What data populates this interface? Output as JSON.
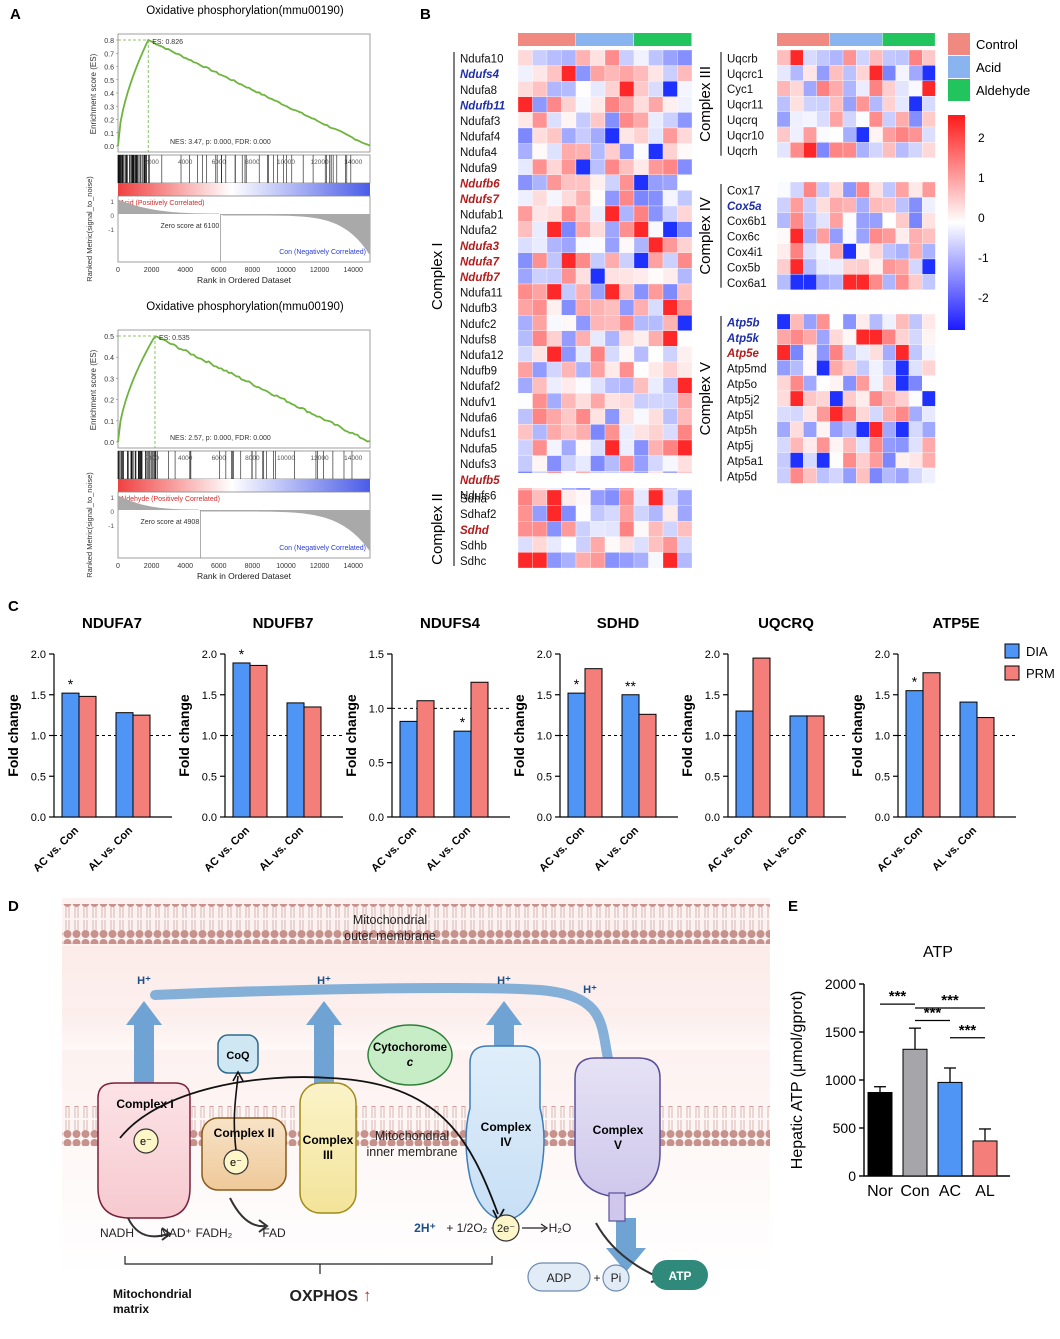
{
  "panel_labels": [
    "A",
    "B",
    "C",
    "D",
    "E"
  ],
  "panelA": {
    "plots": [
      {
        "title": "Oxidative phosphorylation(mmu00190)",
        "es_label": "ES: 0.826",
        "stats": "NES: 3.47, p: 0.000, FDR: 0.000",
        "pos_label": "Acid (Positively Correlated)",
        "neg_label": "Con (Negatively Correlated)",
        "zero_label": "Zero score at 6100",
        "yaxis_es": "Enrichment score (ES)",
        "yaxis_rank": "Ranked Metric(signal_to_noise)",
        "xlabel": "Rank in Ordered Dataset",
        "es_ticks": [
          "0.8",
          "0.7",
          "0.6",
          "0.5",
          "0.4",
          "0.3",
          "0.2",
          "0.1",
          "0.0"
        ],
        "bar_ticks": [
          "2000",
          "4000",
          "6000",
          "8000",
          "10000",
          "12000",
          "14000"
        ],
        "x_ticks": [
          "0",
          "2000",
          "4000",
          "6000",
          "8000",
          "10000",
          "12000",
          "14000"
        ],
        "rank_ticks": [
          "1",
          "0",
          "-1"
        ]
      },
      {
        "title": "Oxidative phosphorylation(mmu00190)",
        "es_label": "ES: 0.535",
        "stats": "NES: 2.57, p: 0.000, FDR: 0.000",
        "pos_label": "Aldehyde (Positively Correlated)",
        "neg_label": "Con (Negatively Correlated)",
        "zero_label": "Zero score at 4908",
        "yaxis_es": "Enrichment score (ES)",
        "yaxis_rank": "Ranked Metric(signal_to_noise)",
        "xlabel": "Rank in Ordered Dataset",
        "es_ticks": [
          "0.5",
          "0.4",
          "0.3",
          "0.2",
          "0.1",
          "0.0"
        ],
        "bar_ticks": [
          "2000",
          "4000",
          "6000",
          "8000",
          "10000",
          "12000",
          "14000"
        ],
        "x_ticks": [
          "0",
          "2000",
          "4000",
          "6000",
          "8000",
          "10000",
          "12000",
          "14000"
        ],
        "rank_ticks": [
          "1",
          "0",
          "-1"
        ]
      }
    ]
  },
  "panelB": {
    "legend": [
      {
        "label": "Control",
        "color": "#F08A80"
      },
      {
        "label": "Acid",
        "color": "#8AB4F0"
      },
      {
        "label": "Aldehyde",
        "color": "#22C45E"
      }
    ],
    "colorbar_ticks": [
      "2",
      "1",
      "0",
      "-1",
      "-2"
    ],
    "complexes": [
      {
        "name": "Complex I",
        "genes": [
          {
            "g": "Ndufa10",
            "c": "n"
          },
          {
            "g": "Ndufs4",
            "c": "b"
          },
          {
            "g": "Ndufa8",
            "c": "n"
          },
          {
            "g": "Ndufb11",
            "c": "b"
          },
          {
            "g": "Ndufaf3",
            "c": "n"
          },
          {
            "g": "Ndufaf4",
            "c": "n"
          },
          {
            "g": "Ndufa4",
            "c": "n"
          },
          {
            "g": "Ndufa9",
            "c": "n"
          },
          {
            "g": "Ndufb6",
            "c": "r"
          },
          {
            "g": "Ndufs7",
            "c": "r"
          },
          {
            "g": "Ndufab1",
            "c": "n"
          },
          {
            "g": "Ndufa2",
            "c": "n"
          },
          {
            "g": "Ndufa3",
            "c": "r"
          },
          {
            "g": "Ndufa7",
            "c": "r"
          },
          {
            "g": "Ndufb7",
            "c": "r"
          },
          {
            "g": "Ndufa11",
            "c": "n"
          },
          {
            "g": "Ndufb3",
            "c": "n"
          },
          {
            "g": "Ndufc2",
            "c": "n"
          },
          {
            "g": "Ndufs8",
            "c": "n"
          },
          {
            "g": "Ndufa12",
            "c": "n"
          },
          {
            "g": "Ndufb9",
            "c": "n"
          },
          {
            "g": "Ndufaf2",
            "c": "n"
          },
          {
            "g": "Ndufv1",
            "c": "n"
          },
          {
            "g": "Ndufa6",
            "c": "n"
          },
          {
            "g": "Ndufs1",
            "c": "n"
          },
          {
            "g": "Ndufa5",
            "c": "n"
          },
          {
            "g": "Ndufs3",
            "c": "n"
          },
          {
            "g": "Ndufb5",
            "c": "r"
          },
          {
            "g": "Ndufs6",
            "c": "n"
          }
        ]
      },
      {
        "name": "Complex II",
        "genes": [
          {
            "g": "Sdha",
            "c": "n"
          },
          {
            "g": "Sdhaf2",
            "c": "n"
          },
          {
            "g": "Sdhd",
            "c": "r"
          },
          {
            "g": "Sdhb",
            "c": "n"
          },
          {
            "g": "Sdhc",
            "c": "n"
          }
        ]
      },
      {
        "name": "Complex III",
        "genes": [
          {
            "g": "Uqcrb",
            "c": "n"
          },
          {
            "g": "Uqcrc1",
            "c": "n"
          },
          {
            "g": "Cyc1",
            "c": "n"
          },
          {
            "g": "Uqcr11",
            "c": "n"
          },
          {
            "g": "Uqcrq",
            "c": "n"
          },
          {
            "g": "Uqcr10",
            "c": "n"
          },
          {
            "g": "Uqcrh",
            "c": "n"
          }
        ]
      },
      {
        "name": "Complex IV",
        "genes": [
          {
            "g": "Cox17",
            "c": "n"
          },
          {
            "g": "Cox5a",
            "c": "b"
          },
          {
            "g": "Cox6b1",
            "c": "n"
          },
          {
            "g": "Cox6c",
            "c": "n"
          },
          {
            "g": "Cox4i1",
            "c": "n"
          },
          {
            "g": "Cox5b",
            "c": "n"
          },
          {
            "g": "Cox6a1",
            "c": "n"
          }
        ]
      },
      {
        "name": "Complex V",
        "genes": [
          {
            "g": "Atp5b",
            "c": "b"
          },
          {
            "g": "Atp5k",
            "c": "b"
          },
          {
            "g": "Atp5e",
            "c": "r"
          },
          {
            "g": "Atp5md",
            "c": "n"
          },
          {
            "g": "Atp5o",
            "c": "n"
          },
          {
            "g": "Atp5j2",
            "c": "n"
          },
          {
            "g": "Atp5l",
            "c": "n"
          },
          {
            "g": "Atp5h",
            "c": "n"
          },
          {
            "g": "Atp5j",
            "c": "n"
          },
          {
            "g": "Atp5a1",
            "c": "n"
          },
          {
            "g": "Atp5d",
            "c": "n"
          }
        ]
      }
    ]
  },
  "chart_data": [
    {
      "type": "bar",
      "title": "NDUFA7",
      "categories": [
        "AC vs. Con",
        "AL vs. Con"
      ],
      "series": [
        {
          "name": "DIA",
          "values": [
            1.52,
            1.28
          ]
        },
        {
          "name": "PRM",
          "values": [
            1.48,
            1.25
          ]
        }
      ],
      "ylabel": "Fold change",
      "ylim": [
        0,
        2.0
      ],
      "yticks": [
        "0.0",
        "0.5",
        "1.0",
        "1.5",
        "2.0"
      ],
      "sig": [
        {
          "cat": 0,
          "series": 0,
          "text": "*"
        }
      ]
    },
    {
      "type": "bar",
      "title": "NDUFB7",
      "categories": [
        "AC vs. Con",
        "AL vs. Con"
      ],
      "series": [
        {
          "name": "DIA",
          "values": [
            1.89,
            1.4
          ]
        },
        {
          "name": "PRM",
          "values": [
            1.86,
            1.35
          ]
        }
      ],
      "ylabel": "Fold change",
      "ylim": [
        0,
        2.0
      ],
      "yticks": [
        "0.0",
        "0.5",
        "1.0",
        "1.5",
        "2.0"
      ],
      "sig": [
        {
          "cat": 0,
          "series": 0,
          "text": "*"
        }
      ]
    },
    {
      "type": "bar",
      "title": "NDUFS4",
      "categories": [
        "AC vs. Con",
        "AL vs. Con"
      ],
      "series": [
        {
          "name": "DIA",
          "values": [
            0.88,
            0.79
          ]
        },
        {
          "name": "PRM",
          "values": [
            1.07,
            1.24
          ]
        }
      ],
      "ylabel": "Fold change",
      "ylim": [
        0,
        1.5
      ],
      "yticks": [
        "0.0",
        "0.5",
        "1.0",
        "1.5"
      ],
      "sig": [
        {
          "cat": 1,
          "series": 0,
          "text": "*"
        }
      ]
    },
    {
      "type": "bar",
      "title": "SDHD",
      "categories": [
        "AC vs. Con",
        "AL vs. Con"
      ],
      "series": [
        {
          "name": "DIA",
          "values": [
            1.52,
            1.5
          ]
        },
        {
          "name": "PRM",
          "values": [
            1.82,
            1.26
          ]
        }
      ],
      "ylabel": "Fold change",
      "ylim": [
        0,
        2.0
      ],
      "yticks": [
        "0.0",
        "0.5",
        "1.0",
        "1.5",
        "2.0"
      ],
      "sig": [
        {
          "cat": 0,
          "series": 0,
          "text": "*"
        },
        {
          "cat": 1,
          "series": 0,
          "text": "**"
        }
      ]
    },
    {
      "type": "bar",
      "title": "UQCRQ",
      "categories": [
        "AC vs. Con",
        "AL vs. Con"
      ],
      "series": [
        {
          "name": "DIA",
          "values": [
            1.3,
            1.24
          ]
        },
        {
          "name": "PRM",
          "values": [
            1.95,
            1.24
          ]
        }
      ],
      "ylabel": "Fold change",
      "ylim": [
        0,
        2.0
      ],
      "yticks": [
        "0.0",
        "0.5",
        "1.0",
        "1.5",
        "2.0"
      ],
      "sig": []
    },
    {
      "type": "bar",
      "title": "ATP5E",
      "categories": [
        "AC vs. Con",
        "AL vs. Con"
      ],
      "series": [
        {
          "name": "DIA",
          "values": [
            1.55,
            1.41
          ]
        },
        {
          "name": "PRM",
          "values": [
            1.77,
            1.22
          ]
        }
      ],
      "ylabel": "Fold change",
      "ylim": [
        0,
        2.0
      ],
      "yticks": [
        "0.0",
        "0.5",
        "1.0",
        "1.5",
        "2.0"
      ],
      "sig": [
        {
          "cat": 0,
          "series": 0,
          "text": "*"
        }
      ]
    },
    {
      "type": "bar",
      "title": "ATP",
      "categories": [
        "Nor",
        "Con",
        "AC",
        "AL"
      ],
      "values": [
        870,
        1320,
        975,
        365
      ],
      "errors": [
        60,
        220,
        150,
        125
      ],
      "colors": [
        "#000000",
        "#A6A6AA",
        "#4E95F5",
        "#F47F7A"
      ],
      "ylabel": "Hepatic ATP (μmol/gprot)",
      "ylim": [
        0,
        2000
      ],
      "yticks": [
        "0",
        "500",
        "1000",
        "1500",
        "2000"
      ],
      "sig_brackets": [
        {
          "from": 0,
          "to": 1,
          "text": "***"
        },
        {
          "from": 1,
          "to": 3,
          "text": "***"
        },
        {
          "from": 1,
          "to": 2,
          "text": "***"
        },
        {
          "from": 2,
          "to": 3,
          "text": "***"
        }
      ]
    }
  ],
  "panelC_legend": [
    {
      "name": "DIA",
      "color": "#4E95F5"
    },
    {
      "name": "PRM",
      "color": "#F47F7A"
    }
  ],
  "panelD": {
    "outer_membrane": "Mitochondrial\nouter membrane",
    "inner_membrane": "Mitochondrial\ninner membrane",
    "matrix": "Mitochondrial\nmatrix",
    "complexes": [
      "Complex I",
      "Complex II",
      "Complex III",
      "Complex IV",
      "Complex V"
    ],
    "coq": "CoQ",
    "cytochrome": "Cytochorome",
    "cytochrome_c": "c",
    "electron": "e⁻",
    "proton": "H⁺",
    "nadh": "NADH",
    "nad": "NAD⁺",
    "fadh2": "FADH₂",
    "fad": "FAD",
    "water_eq_a": "2H⁺",
    "water_eq_b": "+ 1/2O₂ +",
    "two_e": "2e⁻",
    "water": "H₂O",
    "adp": "ADP",
    "pi": "Pi",
    "plus": "+",
    "atp": "ATP",
    "oxphos": "OXPHOS",
    "up_arrow": "↑"
  }
}
